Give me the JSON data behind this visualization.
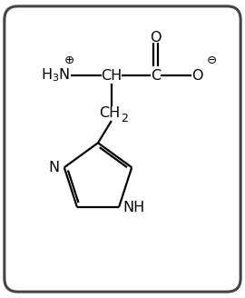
{
  "figure_width": 2.7,
  "figure_height": 3.28,
  "dpi": 100,
  "bg_color": "#ffffff",
  "border_color": "#444444",
  "border_linewidth": 2.2,
  "line_color": "#000000",
  "line_width": 1.6,
  "font_size": 11.5,
  "font_size_sub": 9,
  "font_color": "#000000",
  "xlim": [
    0,
    10
  ],
  "ylim": [
    0,
    12
  ]
}
